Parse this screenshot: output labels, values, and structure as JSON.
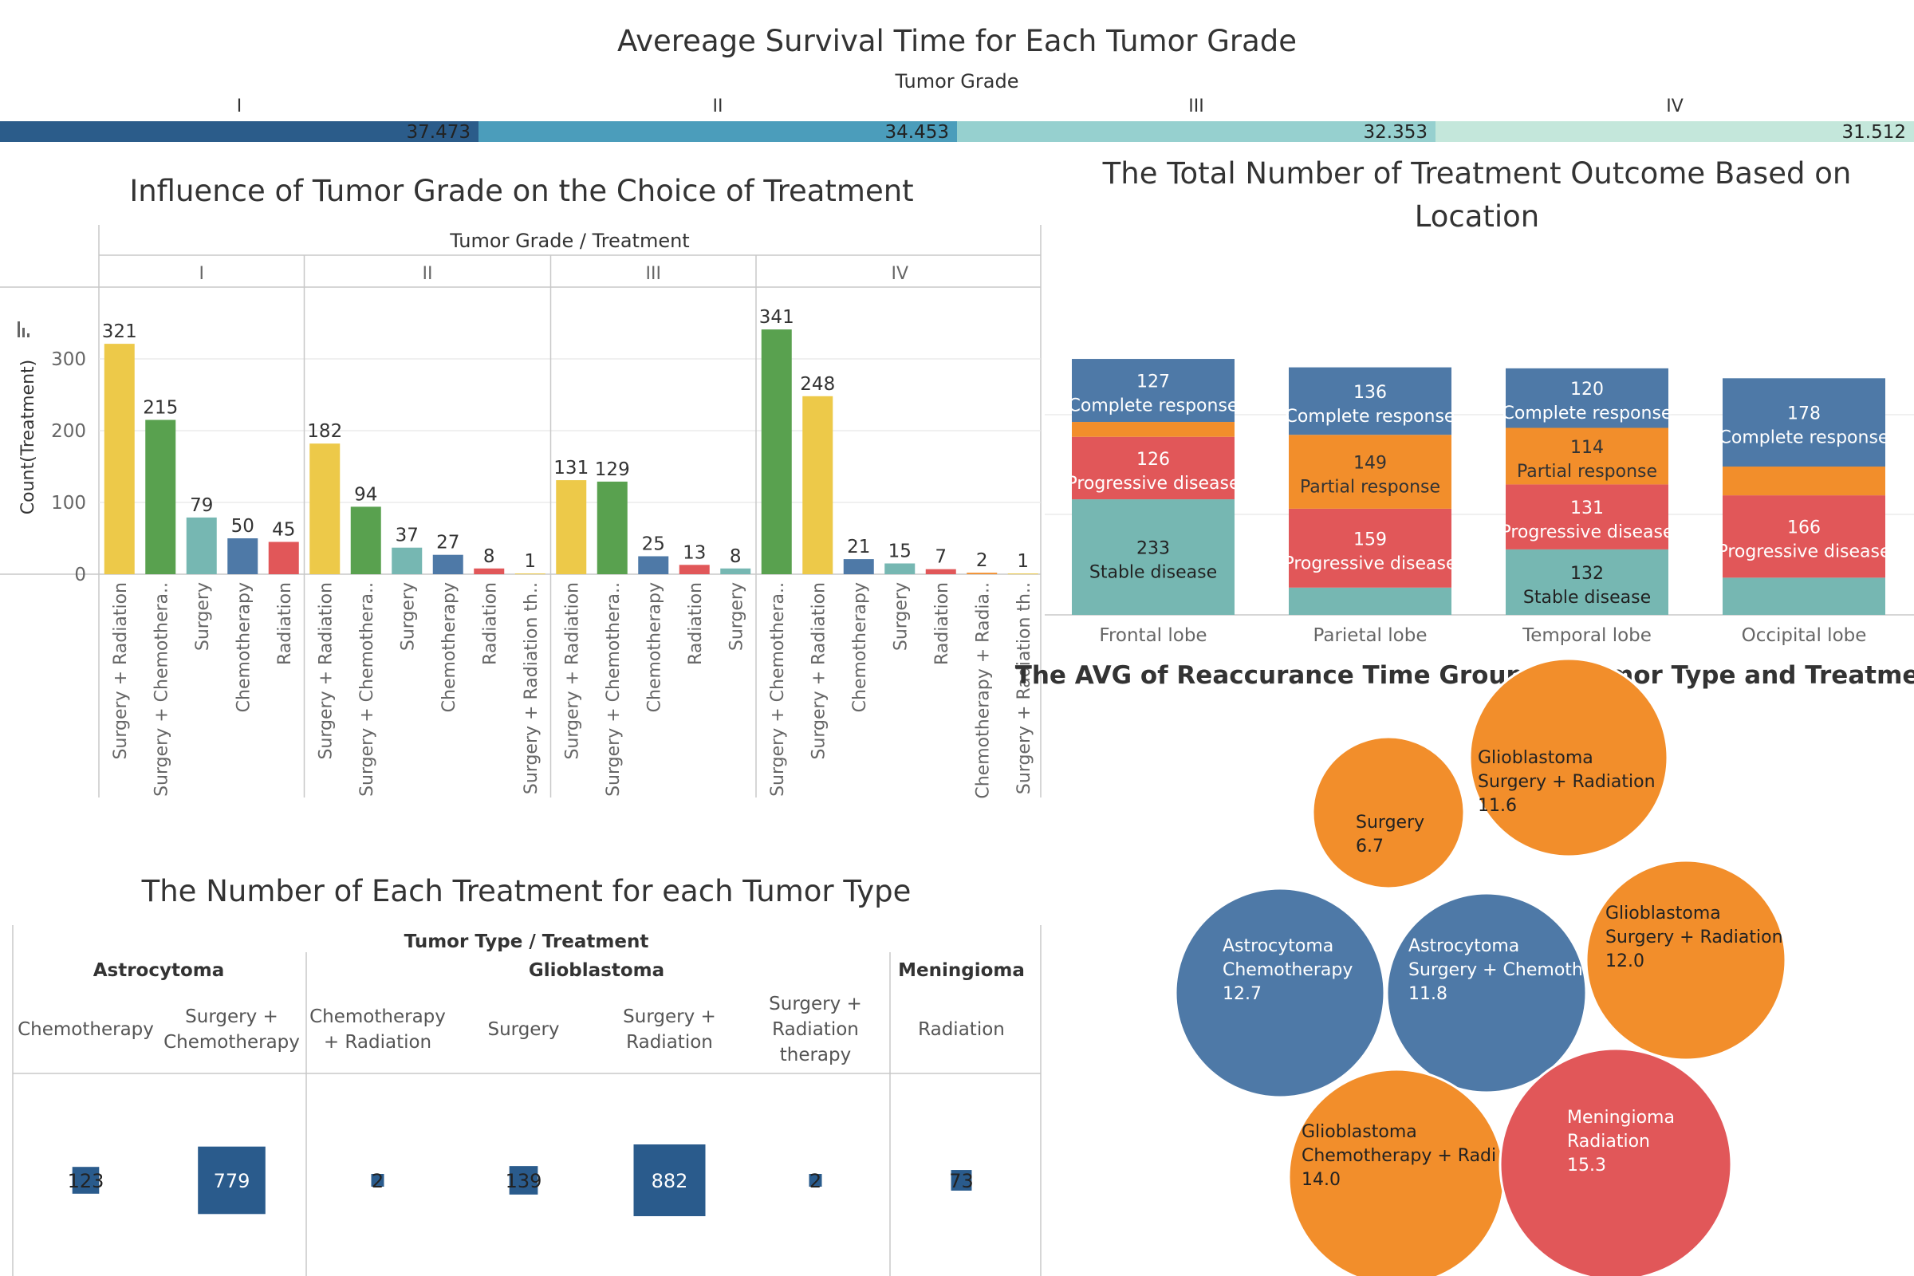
{
  "colors": {
    "yellow": "#EDC949",
    "green": "#59A14F",
    "teal": "#76B7B2",
    "blue": "#4E79A7",
    "red": "#E15759",
    "orange": "#F28E2B",
    "navy": "#2A5B8C",
    "grid": "#e8e8e8",
    "axis": "#c8c8c8",
    "text": "#333333",
    "muted": "#666666"
  },
  "survival": {
    "title": "Avereage Survival Time for Each Tumor Grade",
    "header": "Tumor Grade",
    "grades": [
      {
        "label": "I",
        "value": "37.473",
        "color": "#2B5C8A"
      },
      {
        "label": "II",
        "value": "34.453",
        "color": "#4B9DBB"
      },
      {
        "label": "III",
        "value": "32.353",
        "color": "#96D0CF"
      },
      {
        "label": "IV",
        "value": "31.512",
        "color": "#C4E7DB"
      }
    ]
  },
  "chart_data": [
    {
      "id": "grade_treatment",
      "type": "bar",
      "title": "Influence of Tumor Grade on the Choice of Treatment",
      "header": "Tumor Grade  /  Treatment",
      "ylabel": "Count(Treatment)",
      "ylim": [
        0,
        360
      ],
      "yticks": [
        "0",
        "100",
        "200",
        "300"
      ],
      "groups": [
        {
          "label": "I",
          "bars": [
            {
              "category": "Surgery + Radiation",
              "value": 321,
              "color": "yellow"
            },
            {
              "category": "Surgery + Chemothera..",
              "value": 215,
              "color": "green"
            },
            {
              "category": "Surgery",
              "value": 79,
              "color": "teal"
            },
            {
              "category": "Chemotherapy",
              "value": 50,
              "color": "blue"
            },
            {
              "category": "Radiation",
              "value": 45,
              "color": "red"
            }
          ]
        },
        {
          "label": "II",
          "bars": [
            {
              "category": "Surgery + Radiation",
              "value": 182,
              "color": "yellow"
            },
            {
              "category": "Surgery + Chemothera..",
              "value": 94,
              "color": "green"
            },
            {
              "category": "Surgery",
              "value": 37,
              "color": "teal"
            },
            {
              "category": "Chemotherapy",
              "value": 27,
              "color": "blue"
            },
            {
              "category": "Radiation",
              "value": 8,
              "color": "red"
            },
            {
              "category": "Surgery + Radiation th..",
              "value": 1,
              "color": "yellow"
            }
          ]
        },
        {
          "label": "III",
          "bars": [
            {
              "category": "Surgery + Radiation",
              "value": 131,
              "color": "yellow"
            },
            {
              "category": "Surgery + Chemothera..",
              "value": 129,
              "color": "green"
            },
            {
              "category": "Chemotherapy",
              "value": 25,
              "color": "blue"
            },
            {
              "category": "Radiation",
              "value": 13,
              "color": "red"
            },
            {
              "category": "Surgery",
              "value": 8,
              "color": "teal"
            }
          ]
        },
        {
          "label": "IV",
          "bars": [
            {
              "category": "Surgery + Chemothera..",
              "value": 341,
              "color": "green"
            },
            {
              "category": "Surgery + Radiation",
              "value": 248,
              "color": "yellow"
            },
            {
              "category": "Chemotherapy",
              "value": 21,
              "color": "blue"
            },
            {
              "category": "Surgery",
              "value": 15,
              "color": "teal"
            },
            {
              "category": "Radiation",
              "value": 7,
              "color": "red"
            },
            {
              "category": "Chemotherapy + Radia..",
              "value": 2,
              "color": "orange"
            },
            {
              "category": "Surgery + Radiation th..",
              "value": 1,
              "color": "yellow"
            }
          ]
        }
      ]
    },
    {
      "id": "outcome_location",
      "type": "bar",
      "stacked": true,
      "title": "The Total Number of Treatment Outcome Based on Location",
      "ylim": [
        0,
        620
      ],
      "categories": [
        "Frontal lobe",
        "Parietal lobe",
        "Temporal lobe",
        "Occipital lobe"
      ],
      "stacks": [
        {
          "category": "Frontal lobe",
          "segments": [
            {
              "outcome": "Stable disease",
              "value": 233,
              "color": "teal",
              "show": true
            },
            {
              "outcome": "Progressive disease",
              "value": 126,
              "color": "red",
              "show": true
            },
            {
              "outcome": "Partial response",
              "value": 30,
              "color": "orange",
              "show": false
            },
            {
              "outcome": "Complete response",
              "value": 127,
              "color": "blue",
              "show": true
            }
          ]
        },
        {
          "category": "Parietal lobe",
          "segments": [
            {
              "outcome": "Stable disease",
              "value": 55,
              "color": "teal",
              "show": false
            },
            {
              "outcome": "Progressive disease",
              "value": 159,
              "color": "red",
              "show": true
            },
            {
              "outcome": "Partial response",
              "value": 149,
              "color": "orange",
              "show": true
            },
            {
              "outcome": "Complete response",
              "value": 136,
              "color": "blue",
              "show": true
            }
          ]
        },
        {
          "category": "Temporal lobe",
          "segments": [
            {
              "outcome": "Stable disease",
              "value": 132,
              "color": "teal",
              "show": true
            },
            {
              "outcome": "Progressive disease",
              "value": 131,
              "color": "red",
              "show": true
            },
            {
              "outcome": "Partial response",
              "value": 114,
              "color": "orange",
              "show": true
            },
            {
              "outcome": "Complete response",
              "value": 120,
              "color": "blue",
              "show": true
            }
          ]
        },
        {
          "category": "Occipital lobe",
          "segments": [
            {
              "outcome": "Stable disease",
              "value": 75,
              "color": "teal",
              "show": false
            },
            {
              "outcome": "Progressive disease",
              "value": 166,
              "color": "red",
              "show": true
            },
            {
              "outcome": "Partial response",
              "value": 58,
              "color": "orange",
              "show": false
            },
            {
              "outcome": "Complete response",
              "value": 178,
              "color": "blue",
              "show": true
            }
          ]
        }
      ]
    },
    {
      "id": "reoccurrence_bubbles",
      "type": "scatter",
      "title": "The AVG of Reaccurance Time Group By Tumor Type and Treatment",
      "bubbles": [
        {
          "lines": [
            "Surgery"
          ],
          "value": "6.7",
          "color": "orange"
        },
        {
          "lines": [
            "Glioblastoma",
            "Surgery + Radiation"
          ],
          "value": "11.6",
          "color": "orange"
        },
        {
          "lines": [
            "Astrocytoma",
            "Chemotherapy"
          ],
          "value": "12.7",
          "color": "blue"
        },
        {
          "lines": [
            "Astrocytoma",
            "Surgery + Chemoth"
          ],
          "value": "11.8",
          "color": "blue"
        },
        {
          "lines": [
            "Glioblastoma",
            "Surgery + Radiation"
          ],
          "value": "12.0",
          "color": "orange"
        },
        {
          "lines": [
            "Glioblastoma",
            "Chemotherapy + Radi"
          ],
          "value": "14.0",
          "color": "orange"
        },
        {
          "lines": [
            "Meningioma",
            "Radiation"
          ],
          "value": "15.3",
          "color": "red"
        }
      ]
    },
    {
      "id": "treatment_type_table",
      "type": "table",
      "title": "The Number of Each Treatment for each Tumor Type",
      "header": "Tumor Type  /  Treatment",
      "types": [
        {
          "name": "Astrocytoma",
          "treatments": [
            {
              "lines": [
                "Chemotherapy"
              ],
              "value": 123
            },
            {
              "lines": [
                "Surgery +",
                "Chemotherapy"
              ],
              "value": 779
            }
          ]
        },
        {
          "name": "Glioblastoma",
          "treatments": [
            {
              "lines": [
                "Chemotherapy",
                "+ Radiation"
              ],
              "value": 2
            },
            {
              "lines": [
                "Surgery"
              ],
              "value": 139
            },
            {
              "lines": [
                "Surgery +",
                "Radiation"
              ],
              "value": 882
            },
            {
              "lines": [
                "Surgery +",
                "Radiation",
                "therapy"
              ],
              "value": 2
            }
          ]
        },
        {
          "name": "Meningioma",
          "treatments": [
            {
              "lines": [
                "Radiation"
              ],
              "value": 73
            }
          ]
        }
      ]
    }
  ]
}
